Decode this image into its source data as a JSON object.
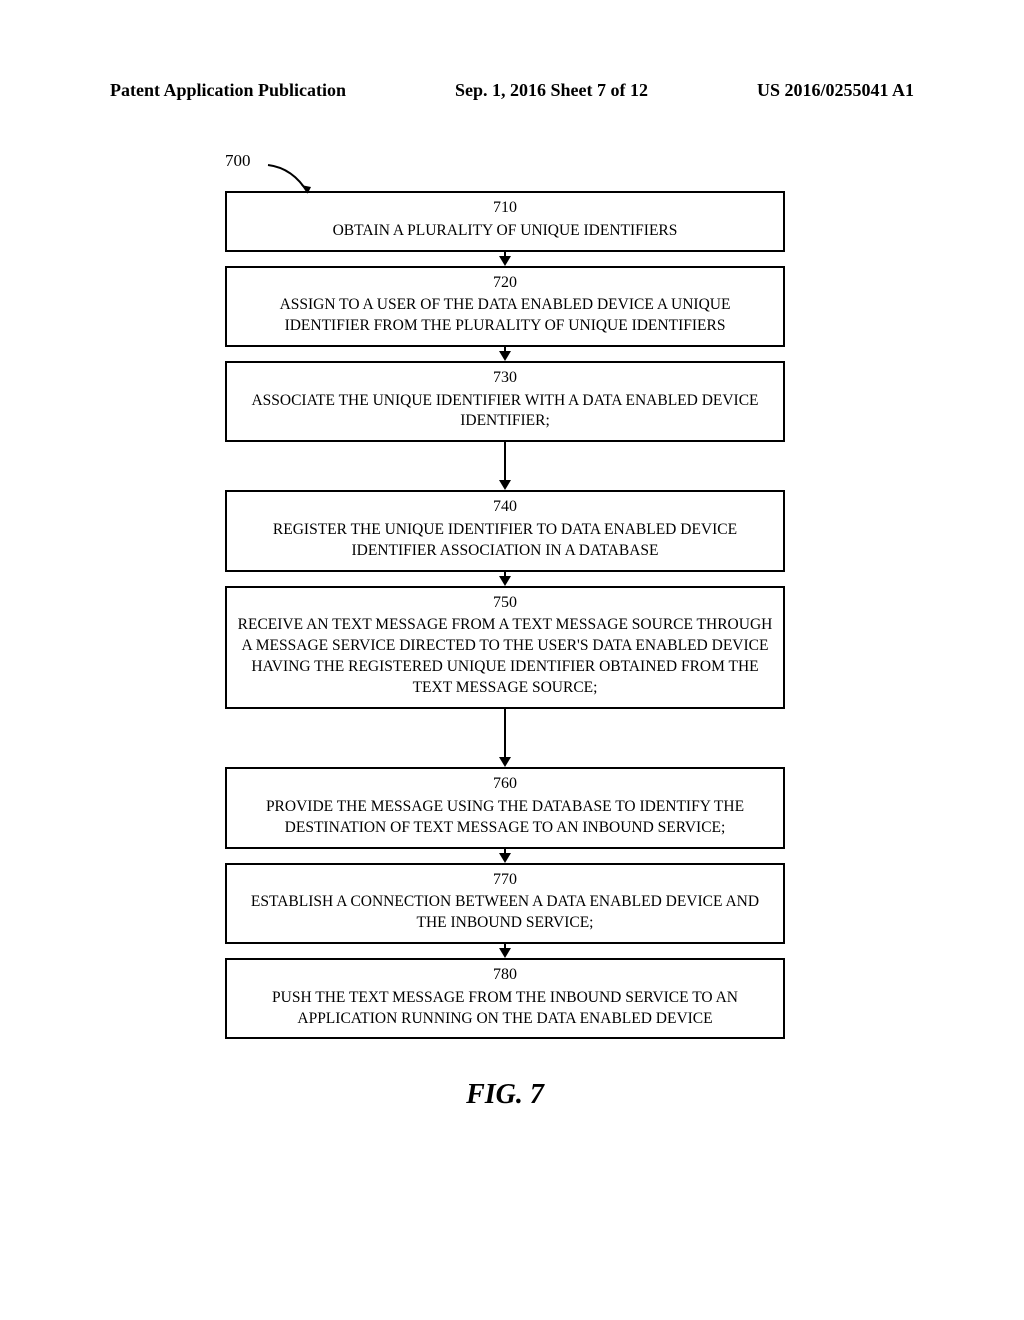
{
  "header": {
    "left": "Patent Application Publication",
    "center": "Sep. 1, 2016   Sheet 7 of 12",
    "right": "US 2016/0255041 A1"
  },
  "flow": {
    "ref_number": "700",
    "steps": [
      {
        "num": "710",
        "text": "OBTAIN A PLURALITY OF UNIQUE IDENTIFIERS",
        "gap": 14
      },
      {
        "num": "720",
        "text": "ASSIGN TO A USER OF  THE DATA ENABLED DEVICE A UNIQUE IDENTIFIER FROM THE PLURALITY OF UNIQUE IDENTIFIERS",
        "gap": 14
      },
      {
        "num": "730",
        "text": "ASSOCIATE THE UNIQUE IDENTIFIER WITH A DATA ENABLED DEVICE IDENTIFIER;",
        "gap": 48
      },
      {
        "num": "740",
        "text": "REGISTER THE UNIQUE IDENTIFIER TO DATA ENABLED DEVICE IDENTIFIER ASSOCIATION IN A DATABASE",
        "gap": 14
      },
      {
        "num": "750",
        "text": "RECEIVE AN TEXT MESSAGE FROM A TEXT MESSAGE SOURCE THROUGH A MESSAGE SERVICE DIRECTED TO THE USER'S DATA ENABLED DEVICE HAVING THE REGISTERED UNIQUE IDENTIFIER OBTAINED FROM THE TEXT MESSAGE SOURCE;",
        "gap": 58
      },
      {
        "num": "760",
        "text": "PROVIDE THE MESSAGE USING THE DATABASE TO IDENTIFY THE DESTINATION OF TEXT MESSAGE TO AN INBOUND SERVICE;",
        "gap": 14
      },
      {
        "num": "770",
        "text": "ESTABLISH A CONNECTION BETWEEN A DATA ENABLED DEVICE AND THE INBOUND SERVICE;",
        "gap": 14
      },
      {
        "num": "780",
        "text": "PUSH THE TEXT MESSAGE FROM THE INBOUND SERVICE TO AN APPLICATION RUNNING ON THE DATA ENABLED DEVICE",
        "gap": 0
      }
    ]
  },
  "caption": "FIG. 7",
  "style": {
    "box_border_color": "#000000",
    "box_bg": "#ffffff",
    "arrow_color": "#000000",
    "font_family": "Times New Roman",
    "header_fontsize": 18,
    "box_fontsize": 15.5,
    "caption_fontsize": 28
  }
}
